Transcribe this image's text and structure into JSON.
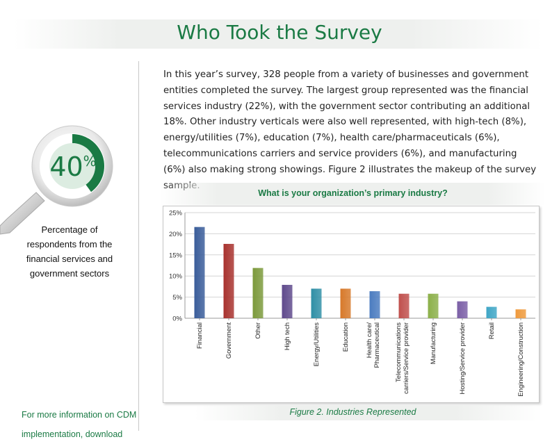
{
  "page": {
    "title": "Who Took the Survey",
    "intro_text": "In this year’s survey, 328 people from a variety of businesses and government entities completed the survey. The largest group represented was the financial services industry (22%), with the government sector contributing an additional 18%. Other industry verticals were also well represented, with high-tech (8%), energy/utilities (7%), education (7%), health care/pharmaceuticals (6%), telecommunications carriers and service providers (6%), and manufacturing (6%) also making strong showings. Figure 2 illustrates the makeup of the survey sample."
  },
  "sidebar": {
    "stat_value": "40",
    "stat_unit": "%",
    "stat_fraction": 0.4,
    "stat_caption": "Percentage of respondents from the financial services and government sectors",
    "more_info_text": "For more information on CDM implementation, download"
  },
  "figure_caption": "Figure 2. Industries Represented",
  "colors": {
    "accent": "#1a7a44"
  },
  "chart_data": {
    "type": "bar",
    "title": "What is your organization’s primary industry?",
    "categories": [
      "Financial",
      "Government",
      "Other",
      "High tech",
      "Energy/Utilities",
      "Education",
      "Health care/\nPharmaceutical",
      "Telecommunications\ncarriers/Service provider",
      "Manufacturing",
      "Hosting/Service provider",
      "Retail",
      "Engineering/Construction"
    ],
    "values": [
      21.6,
      17.6,
      11.9,
      7.9,
      7.0,
      7.0,
      6.4,
      5.8,
      5.8,
      4.0,
      2.7,
      2.1
    ],
    "colors": [
      "#3a5d9a",
      "#a8322e",
      "#7c9a3c",
      "#5f4a8c",
      "#2f8fa6",
      "#d7792a",
      "#4b7cc0",
      "#c0504d",
      "#8cb04a",
      "#7b5fa6",
      "#3fa6c6",
      "#ef9a3c"
    ],
    "yticks": [
      "0%",
      "5%",
      "10%",
      "15%",
      "20%",
      "25%"
    ],
    "ylim": [
      0,
      25
    ],
    "grid": true
  }
}
